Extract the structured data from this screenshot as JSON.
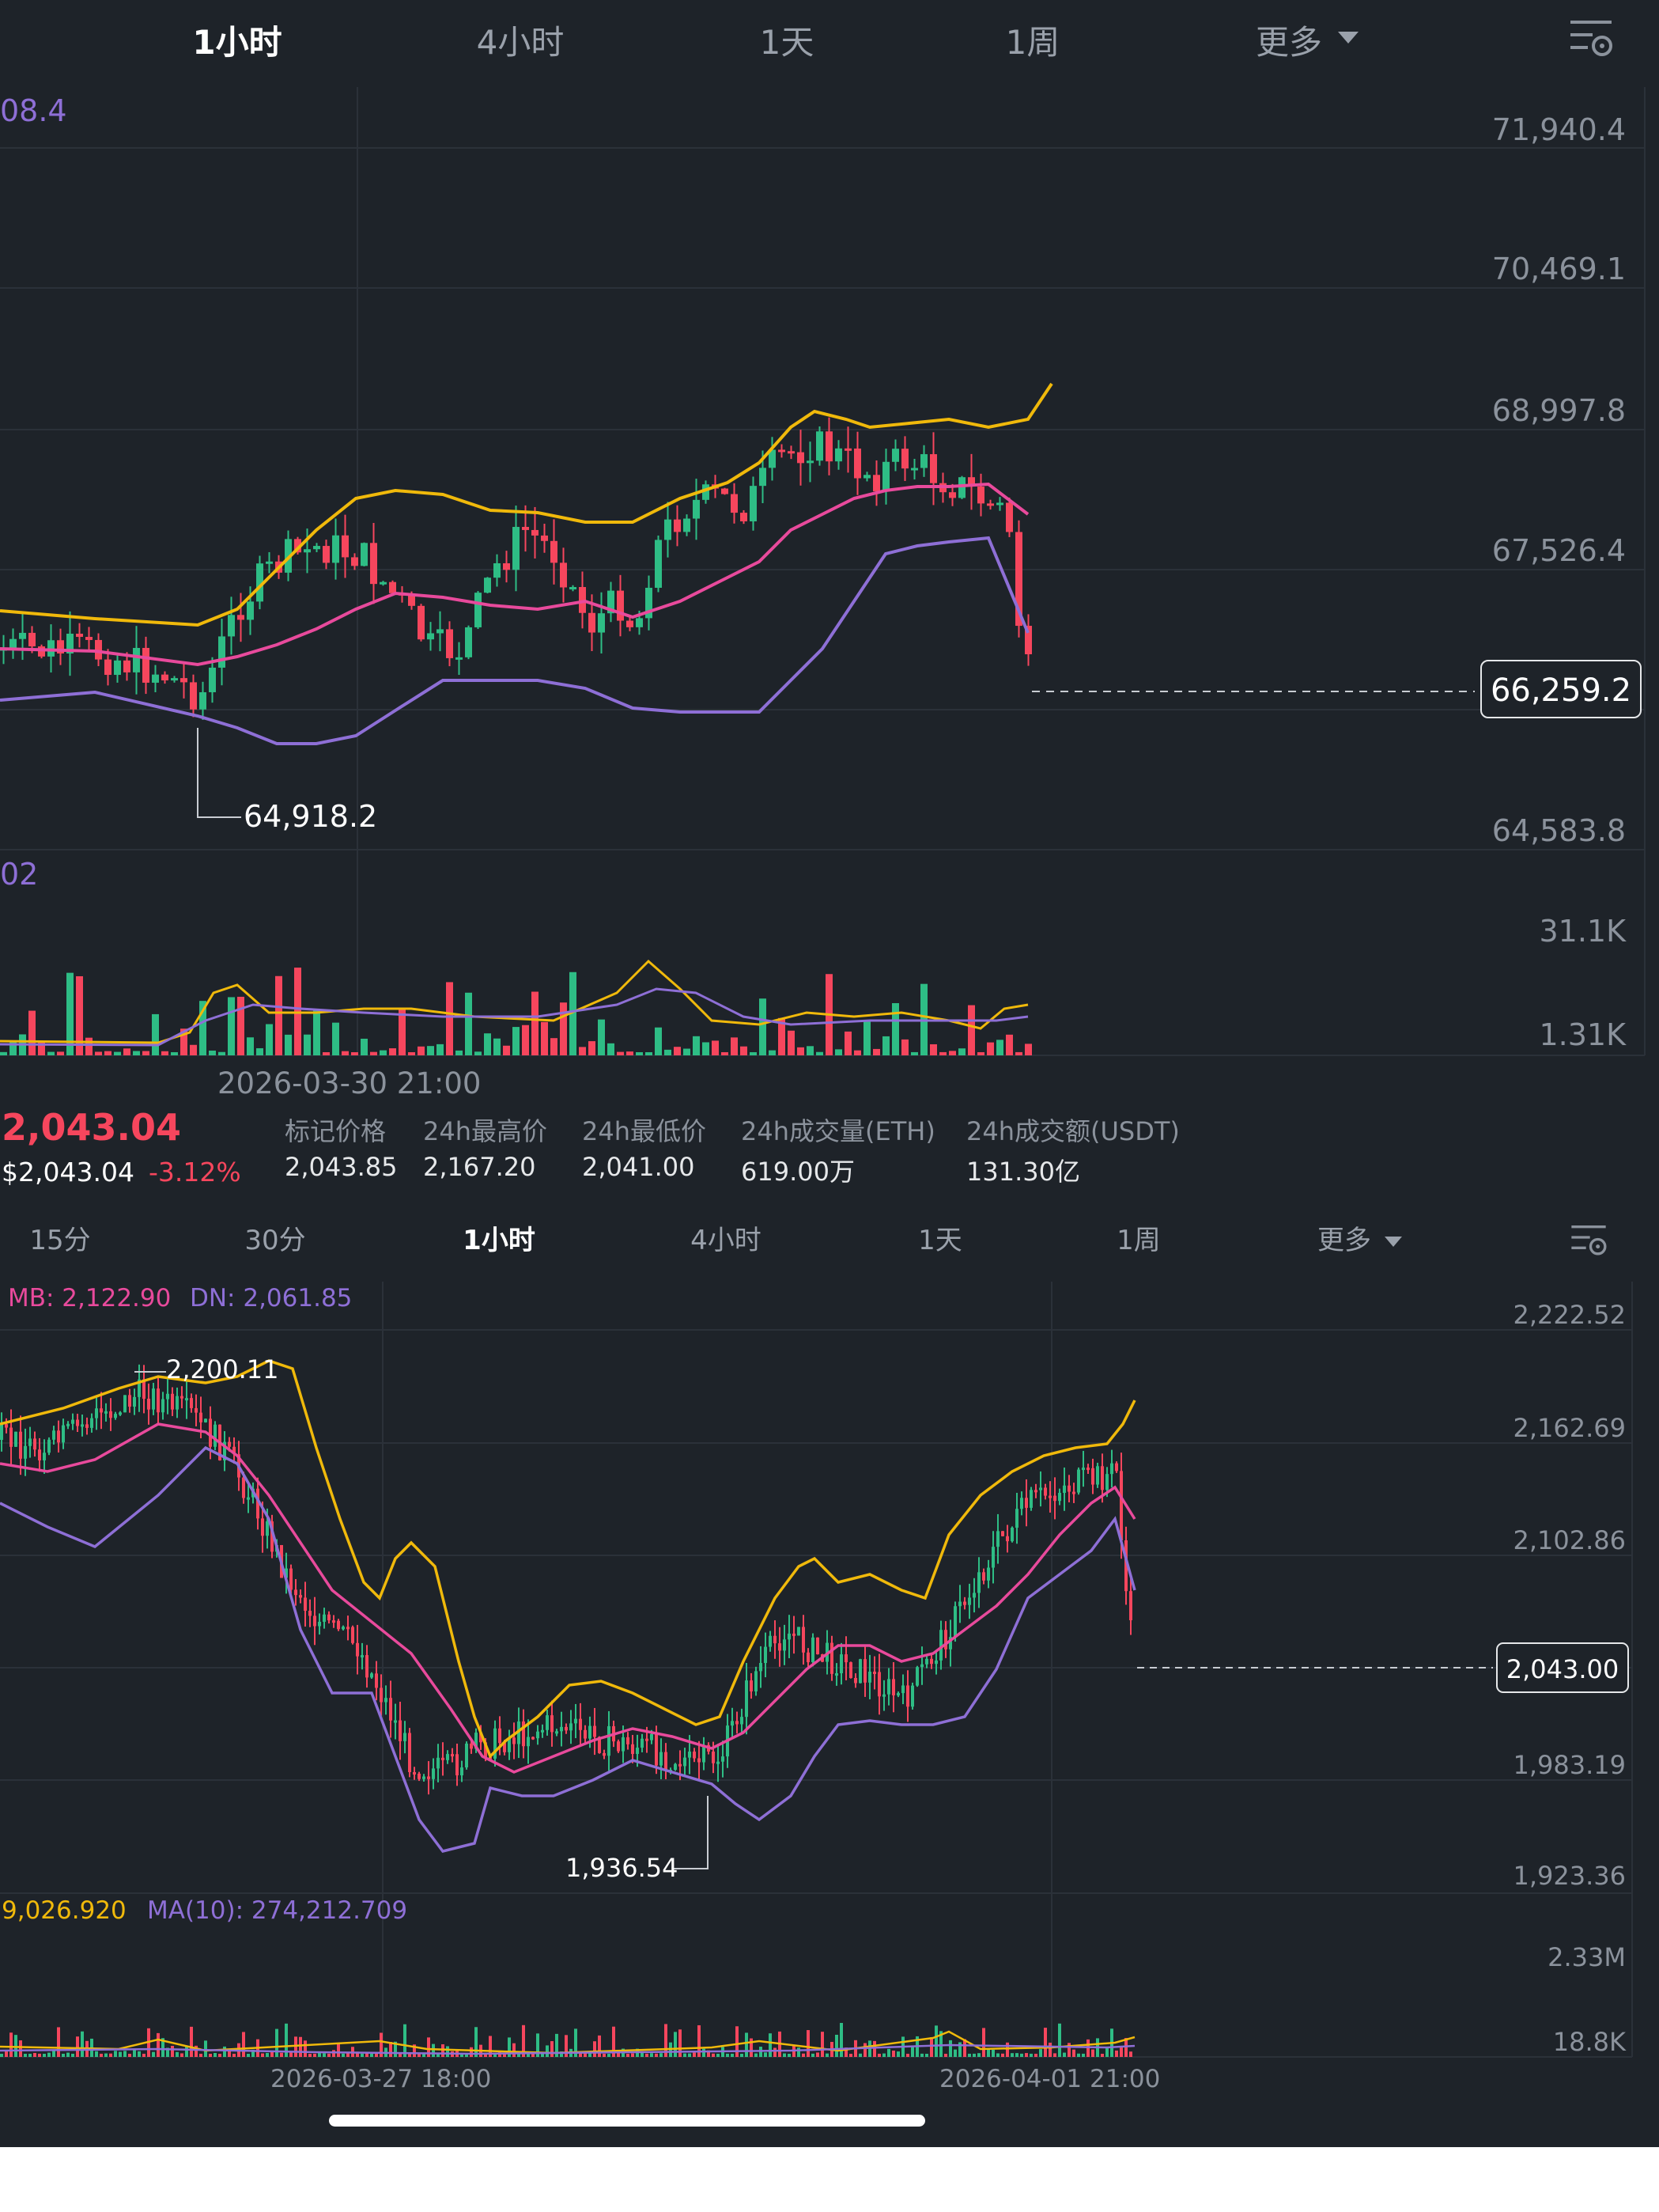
{
  "top_tabs": [
    {
      "label": "1小时",
      "active": true
    },
    {
      "label": "4小时",
      "active": false
    },
    {
      "label": "1天",
      "active": false
    },
    {
      "label": "1周",
      "active": false
    },
    {
      "label": "更多",
      "active": false
    }
  ],
  "top_chart": {
    "indicator_cut": "08.4",
    "volume_indicator_cut": "02",
    "axis_labels": [
      "71,940.4",
      "70,469.1",
      "68,997.8",
      "67,526.4",
      "64,583.8"
    ],
    "current_price": "66,259.2",
    "low_marker": "64,918.2",
    "volume_axis": [
      "31.1K",
      "1.31K"
    ],
    "date_label": "2026-03-30 21:00"
  },
  "info": {
    "price": "2,043.04",
    "usd_price": "$2,043.04",
    "change": "-3.12%",
    "stats": [
      {
        "label": "标记价格",
        "value": "2,043.85"
      },
      {
        "label": "24h最高价",
        "value": "2,167.20"
      },
      {
        "label": "24h最低价",
        "value": "2,041.00"
      },
      {
        "label": "24h成交量(ETH)",
        "value": "619.00万"
      },
      {
        "label": "24h成交额(USDT)",
        "value": "131.30亿"
      }
    ]
  },
  "bottom_tabs": [
    {
      "label": "15分",
      "active": false
    },
    {
      "label": "30分",
      "active": false
    },
    {
      "label": "1小时",
      "active": true
    },
    {
      "label": "4小时",
      "active": false
    },
    {
      "label": "1天",
      "active": false
    },
    {
      "label": "1周",
      "active": false
    },
    {
      "label": "更多",
      "active": false
    }
  ],
  "bottom_chart": {
    "boll_mb": "MB: 2,122.90",
    "boll_dn": "DN: 2,061.85",
    "axis_labels": [
      "2,222.52",
      "2,162.69",
      "2,102.86",
      "1,983.19",
      "1,923.36"
    ],
    "current_price": "2,043.00",
    "high_marker": "2,200.11",
    "low_marker": "1,936.54",
    "vol_ma5_cut": "9,026.920",
    "vol_ma10": "MA(10): 274,212.709",
    "volume_axis": [
      "2.33M",
      "18.8K"
    ],
    "date_labels": [
      "2026-03-27 18:00",
      "2026-04-01 21:00"
    ]
  },
  "colors": {
    "bg": "#1e2329",
    "up": "#2ebd85",
    "down": "#f6465d",
    "boll_up": "#f0b90b",
    "boll_mid": "#e84a9c",
    "boll_dn": "#8e6fd6"
  },
  "icons": [
    "caret-down-icon",
    "chart-settings-icon"
  ]
}
